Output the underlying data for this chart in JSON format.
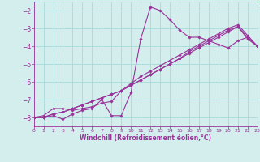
{
  "xlabel": "Windchill (Refroidissement éolien,°C)",
  "ylabel": "",
  "bg_color": "#d4eeee",
  "grid_color": "#aadddd",
  "line_color": "#993399",
  "xlim": [
    0,
    23
  ],
  "ylim": [
    -8.5,
    -1.5
  ],
  "yticks": [
    -8,
    -7,
    -6,
    -5,
    -4,
    -3,
    -2
  ],
  "xticks": [
    0,
    1,
    2,
    3,
    4,
    5,
    6,
    7,
    8,
    9,
    10,
    11,
    12,
    13,
    14,
    15,
    16,
    17,
    18,
    19,
    20,
    21,
    22,
    23
  ],
  "series": [
    {
      "x": [
        0,
        1,
        2,
        3,
        4,
        5,
        6,
        7,
        8,
        9,
        10,
        11,
        12,
        13,
        14,
        15,
        16,
        17,
        18,
        19,
        20,
        21,
        22,
        23
      ],
      "y": [
        -8.0,
        -8.0,
        -7.9,
        -8.1,
        -7.8,
        -7.6,
        -7.5,
        -7.0,
        -7.9,
        -7.9,
        -6.6,
        -3.6,
        -1.8,
        -2.0,
        -2.5,
        -3.1,
        -3.5,
        -3.5,
        -3.7,
        -3.9,
        -4.1,
        -3.7,
        -3.5,
        -4.0
      ]
    },
    {
      "x": [
        0,
        1,
        2,
        3,
        4,
        5,
        6,
        7,
        8,
        9,
        10,
        11,
        12,
        13,
        14,
        15,
        16,
        17,
        18,
        19,
        20,
        21,
        22,
        23
      ],
      "y": [
        -8.0,
        -8.0,
        -7.8,
        -7.7,
        -7.5,
        -7.3,
        -7.1,
        -6.9,
        -6.7,
        -6.5,
        -6.2,
        -5.9,
        -5.6,
        -5.3,
        -5.0,
        -4.7,
        -4.4,
        -4.1,
        -3.8,
        -3.5,
        -3.2,
        -2.9,
        -3.6,
        -4.0
      ]
    },
    {
      "x": [
        0,
        1,
        2,
        3,
        4,
        5,
        6,
        7,
        8,
        9,
        10,
        11,
        12,
        13,
        14,
        15,
        16,
        17,
        18,
        19,
        20,
        21,
        22,
        23
      ],
      "y": [
        -8.0,
        -8.0,
        -7.8,
        -7.7,
        -7.5,
        -7.3,
        -7.1,
        -6.9,
        -6.7,
        -6.5,
        -6.2,
        -5.9,
        -5.6,
        -5.3,
        -5.0,
        -4.7,
        -4.3,
        -4.0,
        -3.7,
        -3.4,
        -3.1,
        -2.9,
        -3.5,
        -4.0
      ]
    },
    {
      "x": [
        0,
        1,
        2,
        3,
        4,
        5,
        6,
        7,
        8,
        9,
        10,
        11,
        12,
        13,
        14,
        15,
        16,
        17,
        18,
        19,
        20,
        21,
        22,
        23
      ],
      "y": [
        -8.0,
        -7.9,
        -7.5,
        -7.5,
        -7.6,
        -7.5,
        -7.4,
        -7.2,
        -7.1,
        -6.5,
        -6.1,
        -5.7,
        -5.4,
        -5.1,
        -4.8,
        -4.5,
        -4.2,
        -3.9,
        -3.6,
        -3.3,
        -3.0,
        -2.8,
        -3.4,
        -4.0
      ]
    }
  ]
}
